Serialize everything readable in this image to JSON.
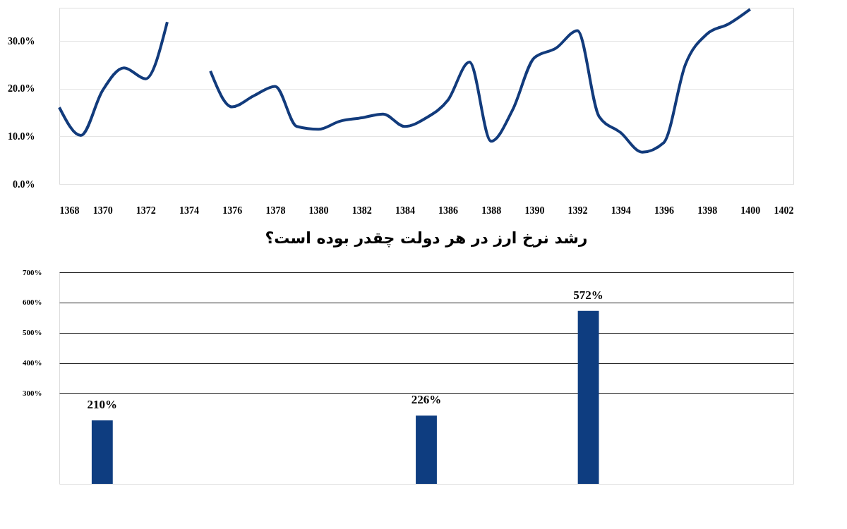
{
  "chart_data": [
    {
      "type": "line",
      "x": [
        1368,
        1369,
        1370,
        1371,
        1372,
        1373,
        1374,
        1375,
        1376,
        1377,
        1378,
        1379,
        1380,
        1381,
        1382,
        1383,
        1384,
        1385,
        1386,
        1387,
        1388,
        1389,
        1390,
        1391,
        1392,
        1393,
        1394,
        1395,
        1396,
        1397,
        1398,
        1399,
        1400
      ],
      "series": [
        {
          "color": "#123b7c",
          "values": [
            16.1,
            10.2,
            19.6,
            24.4,
            22.1,
            34.0,
            null,
            23.7,
            16.2,
            18.5,
            20.5,
            12.1,
            11.5,
            13.2,
            13.9,
            14.7,
            12.1,
            13.9,
            17.6,
            25.6,
            9.0,
            15.6,
            26.5,
            28.5,
            32.2,
            14.2,
            10.8,
            6.7,
            8.7,
            25.1,
            31.5,
            33.6,
            36.7
          ]
        }
      ],
      "xlim": [
        1368,
        1402
      ],
      "xticks": [
        1368,
        1370,
        1372,
        1374,
        1376,
        1378,
        1380,
        1382,
        1384,
        1386,
        1388,
        1390,
        1392,
        1394,
        1396,
        1398,
        1400,
        1402
      ],
      "ylim": [
        0,
        37
      ],
      "yticks": [
        {
          "value": 0,
          "label": "0.0%"
        },
        {
          "value": 10,
          "label": "10.0%"
        },
        {
          "value": 20,
          "label": "20.0%"
        },
        {
          "value": 30,
          "label": "30.0%"
        }
      ],
      "grid": "y",
      "line_style": "solid",
      "marker": "none"
    },
    {
      "type": "bar",
      "title": "رشد نرخ ارز در هر دولت چقدر بوده است؟",
      "categories": [
        null,
        null,
        null,
        null,
        null
      ],
      "values": [
        210,
        null,
        226,
        572,
        null
      ],
      "value_labels": [
        "210%",
        null,
        "226%",
        "572%",
        null
      ],
      "color": "#0e3d80",
      "ylim": [
        0,
        700
      ],
      "yticks": [
        {
          "value": 300,
          "label": "300%"
        },
        {
          "value": 400,
          "label": "400%"
        },
        {
          "value": 500,
          "label": "500%"
        },
        {
          "value": 600,
          "label": "600%"
        },
        {
          "value": 700,
          "label": "700%"
        }
      ],
      "grid": "y",
      "tick_labels": "y"
    }
  ]
}
